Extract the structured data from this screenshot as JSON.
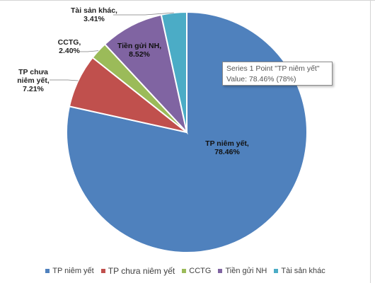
{
  "chart_data": {
    "type": "pie",
    "categories": [
      "TP niêm yết",
      "TP chưa niêm yết",
      "CCTG",
      "Tiền gửi NH",
      "Tài sản khác"
    ],
    "values": [
      78.46,
      7.21,
      2.4,
      8.52,
      3.41
    ],
    "data_labels": [
      [
        "TP niêm yết,",
        "78.46%"
      ],
      [
        "TP chưa",
        "niêm yết,",
        "7.21%"
      ],
      [
        "CCTG,",
        "2.40%"
      ],
      [
        "Tiền gửi NH,",
        "8.52%"
      ],
      [
        "Tài sản khác,",
        "3.41%"
      ]
    ],
    "colors": [
      "#4f81bd",
      "#c0504d",
      "#9bbb59",
      "#8064a2",
      "#4bacc6"
    ],
    "start_angle_deg": 0,
    "direction": "clockwise",
    "legend_position": "bottom"
  },
  "tooltip": {
    "line1": "Series 1 Point \"TP niêm yết\"",
    "line2": "Value: 78.46% (78%)"
  }
}
